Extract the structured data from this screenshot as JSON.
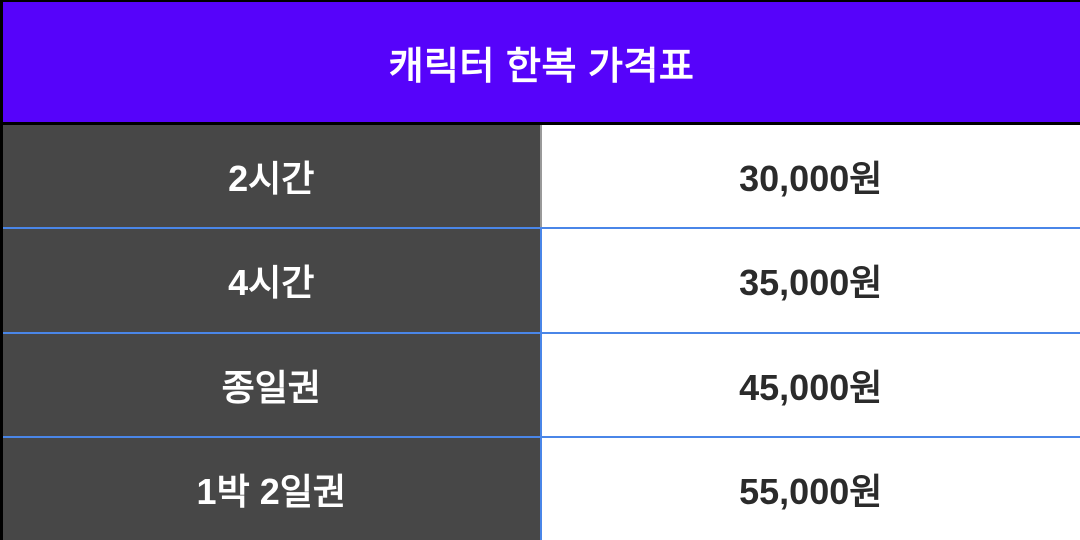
{
  "table": {
    "title": "캐릭터 한복 가격표",
    "rows": [
      {
        "label": "2시간",
        "price": "30,000원"
      },
      {
        "label": "4시간",
        "price": "35,000원"
      },
      {
        "label": "종일권",
        "price": "45,000원"
      },
      {
        "label": "1박 2일권",
        "price": "55,000원"
      }
    ],
    "colors": {
      "header_bg": "#5603fa",
      "label_bg": "#474747",
      "border_blue": "#4a86e8",
      "divider_gray": "#999999",
      "text_dark": "#2b2b2b",
      "text_white": "#ffffff"
    }
  },
  "chart_data": {
    "type": "table",
    "title": "캐릭터 한복 가격표",
    "categories": [
      "2시간",
      "4시간",
      "종일권",
      "1박 2일권"
    ],
    "values": [
      "30,000원",
      "35,000원",
      "45,000원",
      "55,000원"
    ],
    "values_krw": [
      30000,
      35000,
      45000,
      55000
    ]
  }
}
